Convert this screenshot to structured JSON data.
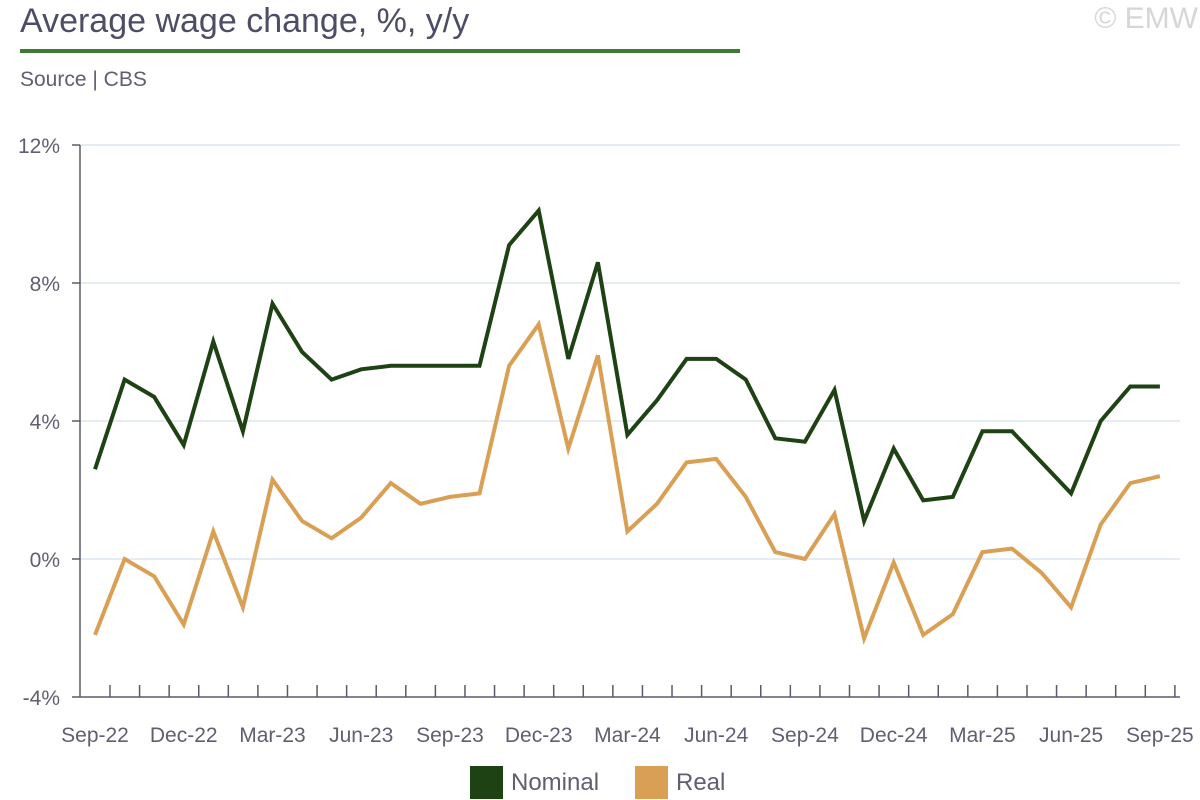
{
  "header": {
    "title": "Average wage change, %, y/y",
    "source": "Source | CBS",
    "watermark": "© EMW"
  },
  "colors": {
    "nominal": "#1e4213",
    "real": "#d9a055",
    "title_rule": "#3f7a35",
    "grid": "#dde6ef",
    "axis": "#5a5a6e"
  },
  "chart_data": {
    "type": "line",
    "title": "Average wage change, %, y/y",
    "xlabel": "",
    "ylabel": "",
    "ylim": [
      -4,
      12
    ],
    "yticks": [
      -4,
      0,
      4,
      8,
      12
    ],
    "ytick_labels": [
      "-4%",
      "0%",
      "4%",
      "8%",
      "12%"
    ],
    "grid": true,
    "legend_position": "bottom",
    "x": [
      "Sep-22",
      "Oct-22",
      "Nov-22",
      "Dec-22",
      "Jan-23",
      "Feb-23",
      "Mar-23",
      "Apr-23",
      "May-23",
      "Jun-23",
      "Jul-23",
      "Aug-23",
      "Sep-23",
      "Oct-23",
      "Nov-23",
      "Dec-23",
      "Jan-24",
      "Feb-24",
      "Mar-24",
      "Apr-24",
      "May-24",
      "Jun-24",
      "Jul-24",
      "Aug-24",
      "Sep-24",
      "Oct-24",
      "Nov-24",
      "Dec-24",
      "Jan-25",
      "Feb-25",
      "Mar-25",
      "Apr-25",
      "May-25",
      "Jun-25",
      "Jul-25",
      "Aug-25",
      "Sep-25"
    ],
    "x_tick_labels": [
      "Sep-22",
      "Dec-22",
      "Mar-23",
      "Jun-23",
      "Sep-23",
      "Dec-23",
      "Mar-24",
      "Jun-24",
      "Sep-24",
      "Dec-24",
      "Mar-25",
      "Jun-25",
      "Sep-25"
    ],
    "series": [
      {
        "name": "Nominal",
        "color": "#1e4213",
        "values": [
          2.6,
          5.2,
          4.7,
          3.3,
          6.3,
          3.7,
          7.4,
          6.0,
          5.2,
          5.5,
          5.6,
          5.6,
          5.6,
          5.6,
          9.1,
          10.1,
          5.8,
          8.6,
          3.6,
          4.6,
          5.8,
          5.8,
          5.2,
          3.5,
          3.4,
          4.9,
          1.1,
          3.2,
          1.7,
          1.8,
          3.7,
          3.7,
          2.8,
          1.9,
          4.0,
          5.0,
          5.0
        ]
      },
      {
        "name": "Real",
        "color": "#d9a055",
        "values": [
          -2.2,
          0.0,
          -0.5,
          -1.9,
          0.8,
          -1.4,
          2.3,
          1.1,
          0.6,
          1.2,
          2.2,
          1.6,
          1.8,
          1.9,
          5.6,
          6.8,
          3.2,
          5.9,
          0.8,
          1.6,
          2.8,
          2.9,
          1.8,
          0.2,
          0.0,
          1.3,
          -2.3,
          -0.1,
          -2.2,
          -1.6,
          0.2,
          0.3,
          -0.4,
          -1.4,
          1.0,
          2.2,
          2.4
        ]
      }
    ]
  }
}
